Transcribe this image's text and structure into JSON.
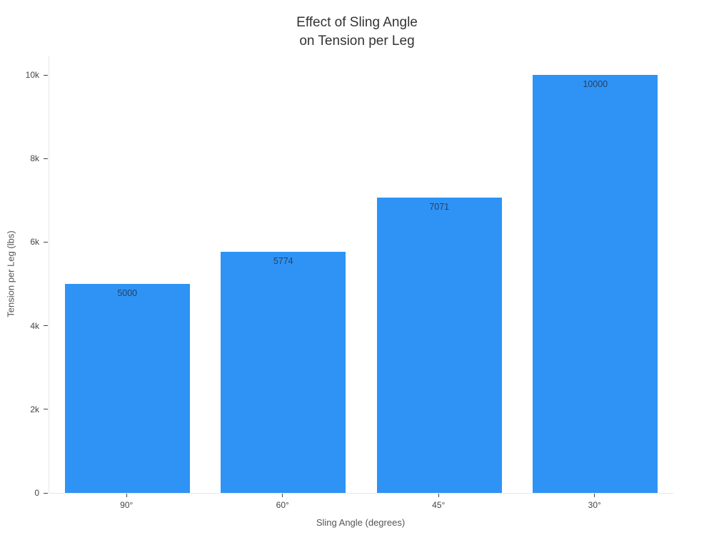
{
  "chart_data": {
    "type": "bar",
    "title": "Effect of Sling Angle\non Tension per Leg",
    "xlabel": "Sling Angle (degrees)",
    "ylabel": "Tension per Leg (lbs)",
    "categories": [
      "90°",
      "60°",
      "45°",
      "30°"
    ],
    "values": [
      5000,
      5774,
      7071,
      10000
    ],
    "bar_labels": [
      "5000",
      "5774",
      "7071",
      "10000"
    ],
    "ylim": [
      0,
      10000
    ],
    "yticks": {
      "values": [
        0,
        2000,
        4000,
        6000,
        8000,
        10000
      ],
      "labels": [
        "0",
        "2k",
        "4k",
        "6k",
        "8k",
        "10k"
      ]
    },
    "grid": false,
    "legend": "none",
    "colors": {
      "bar": "#2e93f5",
      "bar_label": "#2a3f5f",
      "axis_line": "#e8e8e8",
      "tick_mark": "#444444",
      "tick_label": "#444444",
      "axis_title": "#555555",
      "title": "#333333",
      "background": "#ffffff"
    }
  }
}
